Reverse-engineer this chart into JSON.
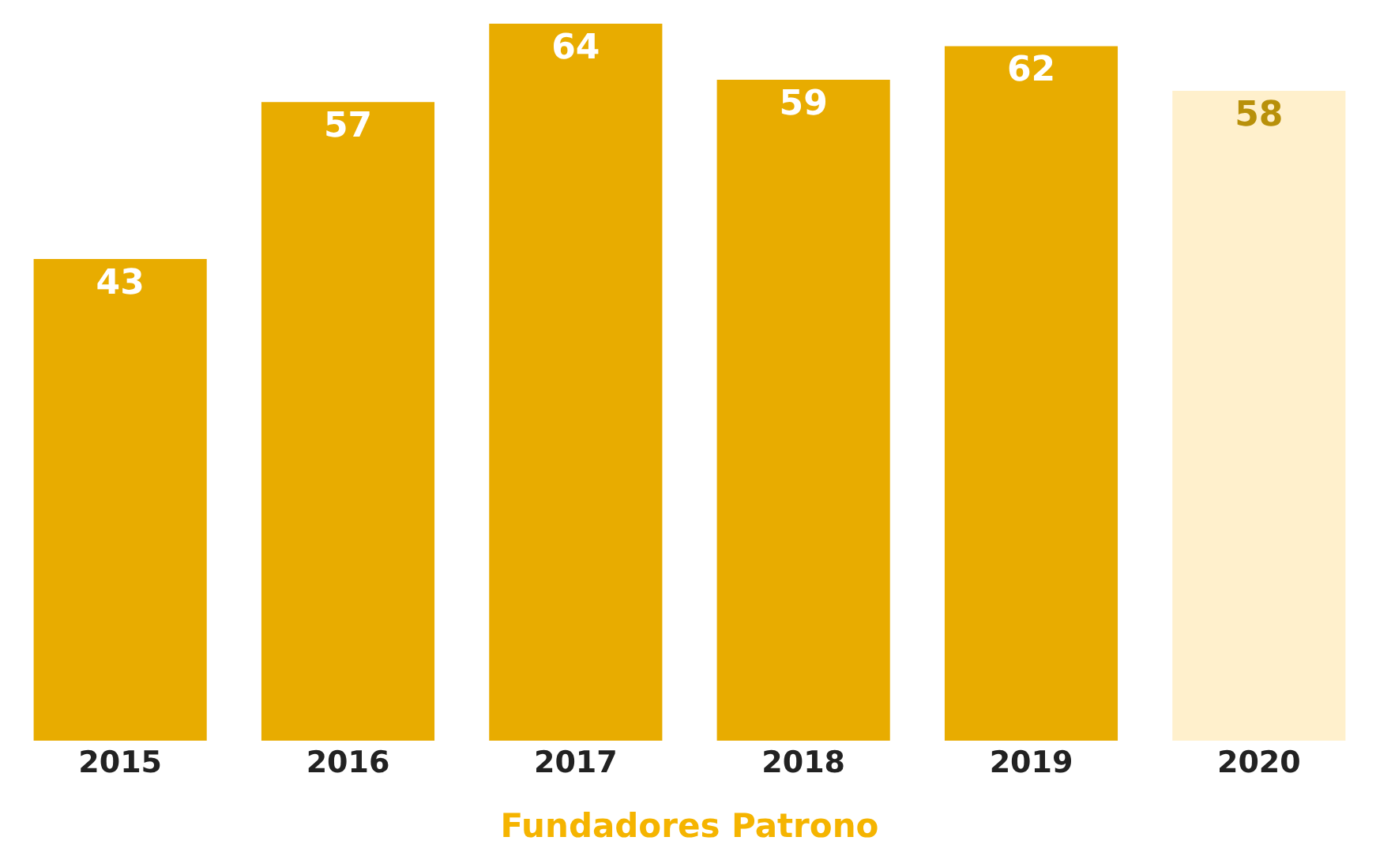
{
  "chart_data": {
    "type": "bar",
    "categories": [
      "2015",
      "2016",
      "2017",
      "2018",
      "2019",
      "2020"
    ],
    "values": [
      43,
      57,
      64,
      59,
      62,
      58
    ],
    "colors": [
      "#e8ac00",
      "#e8ac00",
      "#e8ac00",
      "#e8ac00",
      "#e8ac00",
      "#fff0cc"
    ],
    "xlabel": "Fundadores Patrono",
    "data_labels": true
  }
}
